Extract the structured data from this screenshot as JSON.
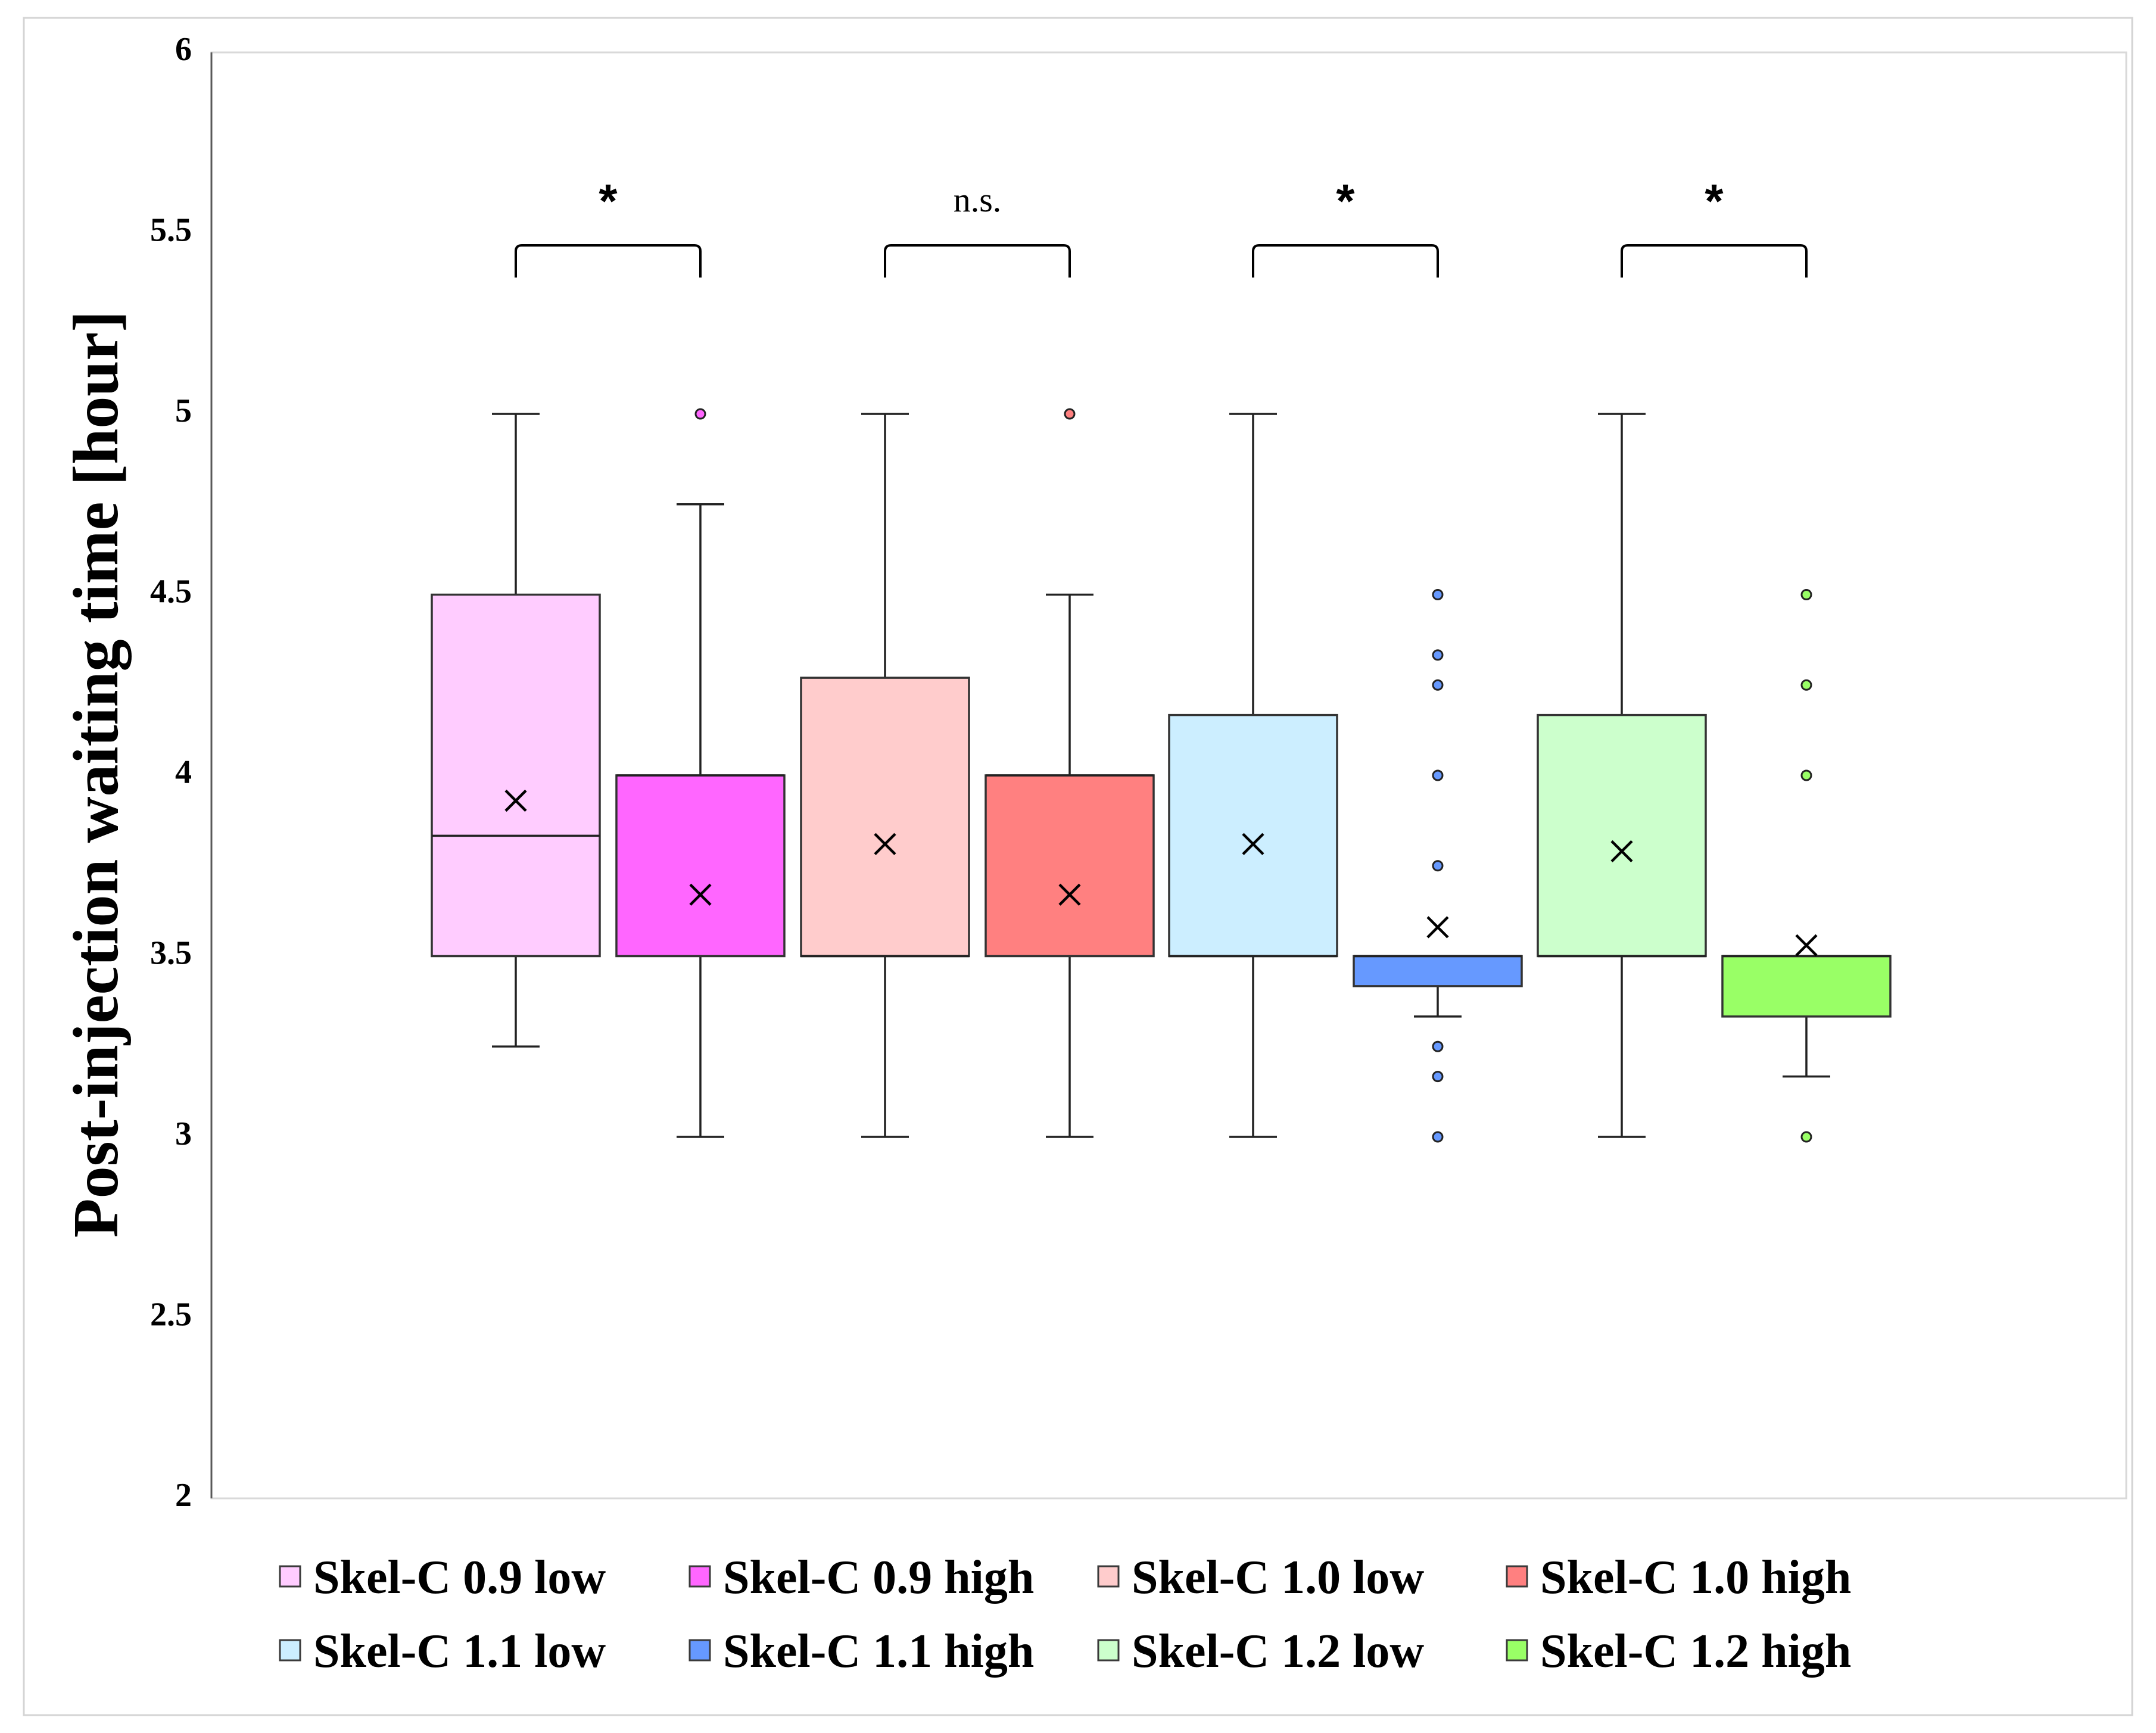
{
  "chart_data": {
    "type": "box",
    "title": "",
    "xlabel": "",
    "ylabel": "Post-injection waiting time [hour]",
    "ylim": [
      2,
      6
    ],
    "yticks": [
      "2",
      "2.5",
      "3",
      "3.5",
      "4",
      "4.5",
      "5",
      "5.5",
      "6"
    ],
    "grid": false,
    "legend_position": "bottom",
    "series": [
      {
        "name": "Skel-C 0.9 low",
        "color": "#ffccff",
        "outlier_color": "#ff99ff",
        "q1": 3.5,
        "median": 3.833,
        "q3": 4.5,
        "whisker_low": 3.25,
        "whisker_high": 5.0,
        "mean": 3.93,
        "outliers": []
      },
      {
        "name": "Skel-C 0.9 high",
        "color": "#ff66ff",
        "outlier_color": "#ff66ff",
        "q1": 3.5,
        "median": 4.0,
        "q3": 4.0,
        "whisker_low": 3.0,
        "whisker_high": 4.75,
        "mean": 3.67,
        "outliers": [
          5.0
        ]
      },
      {
        "name": "Skel-C 1.0 low",
        "color": "#ffcccc",
        "outlier_color": "#ff9999",
        "q1": 3.5,
        "median": 3.5,
        "q3": 4.27,
        "whisker_low": 3.0,
        "whisker_high": 5.0,
        "mean": 3.81,
        "outliers": []
      },
      {
        "name": "Skel-C 1.0 high",
        "color": "#ff8080",
        "outlier_color": "#ff8080",
        "q1": 3.5,
        "median": 4.0,
        "q3": 4.0,
        "whisker_low": 3.0,
        "whisker_high": 4.5,
        "mean": 3.67,
        "outliers": [
          5.0
        ]
      },
      {
        "name": "Skel-C 1.1 low",
        "color": "#cceeff",
        "outlier_color": "#99ccff",
        "q1": 3.5,
        "median": 3.5,
        "q3": 4.167,
        "whisker_low": 3.0,
        "whisker_high": 5.0,
        "mean": 3.81,
        "outliers": []
      },
      {
        "name": "Skel-C 1.1 high",
        "color": "#6699ff",
        "outlier_color": "#6699ff",
        "q1": 3.417,
        "median": 3.5,
        "q3": 3.5,
        "whisker_low": 3.333,
        "whisker_high": 3.5,
        "mean": 3.58,
        "outliers": [
          4.5,
          4.333,
          4.25,
          4.0,
          3.75,
          3.25,
          3.167,
          3.0
        ]
      },
      {
        "name": "Skel-C 1.2 low",
        "color": "#ccffcc",
        "outlier_color": "#99ff99",
        "q1": 3.5,
        "median": 3.5,
        "q3": 4.167,
        "whisker_low": 3.0,
        "whisker_high": 5.0,
        "mean": 3.79,
        "outliers": []
      },
      {
        "name": "Skel-C 1.2 high",
        "color": "#99ff66",
        "outlier_color": "#99ff66",
        "q1": 3.333,
        "median": 3.5,
        "q3": 3.5,
        "whisker_low": 3.167,
        "whisker_high": 3.5,
        "mean": 3.53,
        "outliers": [
          4.5,
          4.25,
          4.0,
          3.0
        ]
      }
    ],
    "comparisons": [
      {
        "pair": [
          0,
          1
        ],
        "label": "*"
      },
      {
        "pair": [
          2,
          3
        ],
        "label": "n.s."
      },
      {
        "pair": [
          4,
          5
        ],
        "label": "*"
      },
      {
        "pair": [
          6,
          7
        ],
        "label": "*"
      }
    ]
  }
}
